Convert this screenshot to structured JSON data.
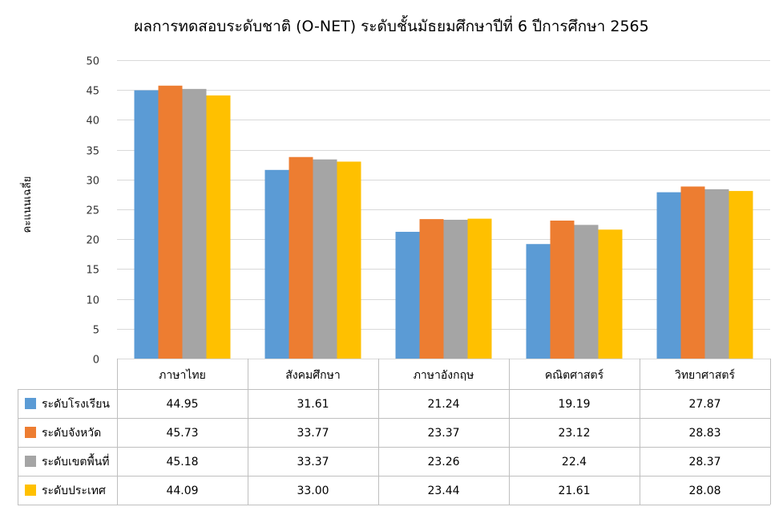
{
  "chart_data": {
    "type": "bar",
    "title": "ผลการทดสอบระดับชาติ (O-NET)  ระดับชั้นมัธยมศึกษาปีที่ 6 ปีการศึกษา 2565",
    "ylabel": "คะแนนเฉลี่ย",
    "xlabel": "",
    "ylim": [
      0,
      50
    ],
    "yticks": [
      0,
      5,
      10,
      15,
      20,
      25,
      30,
      35,
      40,
      45,
      50
    ],
    "grid": true,
    "legend_placement": "data-table-left",
    "categories": [
      "ภาษาไทย",
      "สังคมศึกษา",
      "ภาษาอังกฤษ",
      "คณิตศาสตร์",
      "วิทยาศาสตร์"
    ],
    "series": [
      {
        "name": "ระดับโรงเรียน",
        "color": "#5B9BD5",
        "values": [
          44.95,
          31.61,
          21.24,
          19.19,
          27.87
        ],
        "labels": [
          "44.95",
          "31.61",
          "21.24",
          "19.19",
          "27.87"
        ]
      },
      {
        "name": "ระดับจังหวัด",
        "color": "#ED7D31",
        "values": [
          45.73,
          33.77,
          23.37,
          23.12,
          28.83
        ],
        "labels": [
          "45.73",
          "33.77",
          "23.37",
          "23.12",
          "28.83"
        ]
      },
      {
        "name": "ระดับเขตพื้นที่",
        "color": "#A5A5A5",
        "values": [
          45.18,
          33.37,
          23.26,
          22.4,
          28.37
        ],
        "labels": [
          "45.18",
          "33.37",
          "23.26",
          "22.4",
          "28.37"
        ]
      },
      {
        "name": "ระดับประเทศ",
        "color": "#FFC000",
        "values": [
          44.09,
          33.0,
          23.44,
          21.61,
          28.08
        ],
        "labels": [
          "44.09",
          "33.00",
          "23.44",
          "21.61",
          "28.08"
        ]
      }
    ]
  }
}
